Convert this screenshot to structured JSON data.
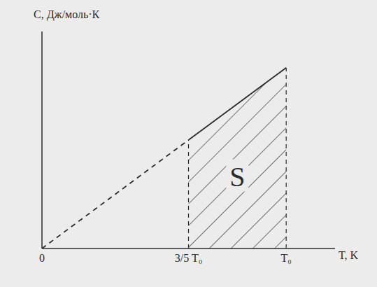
{
  "chart_data": {
    "type": "line",
    "x_label": "T, K",
    "y_label": "C, Дж/моль·К",
    "xlim": [
      0,
      1.2
    ],
    "ylim": [
      0,
      1.2
    ],
    "xticks": [
      0,
      {
        "value": 0.6,
        "label": "3/5 T₀"
      },
      {
        "value": 1,
        "label": "T₀"
      }
    ],
    "tick_labels": "x",
    "grid": false,
    "series": [
      {
        "x": [
          0,
          0.6
        ],
        "values": [
          0,
          0.6
        ],
        "color": "#2b2b2b",
        "line_style": "dashed"
      },
      {
        "x": [
          0.6,
          1
        ],
        "values": [
          0.6,
          1
        ],
        "color": "#2b2b2b",
        "line_style": "solid"
      }
    ],
    "annotations": [
      {
        "text": "S",
        "from": 0.6,
        "to": 1
      }
    ]
  }
}
